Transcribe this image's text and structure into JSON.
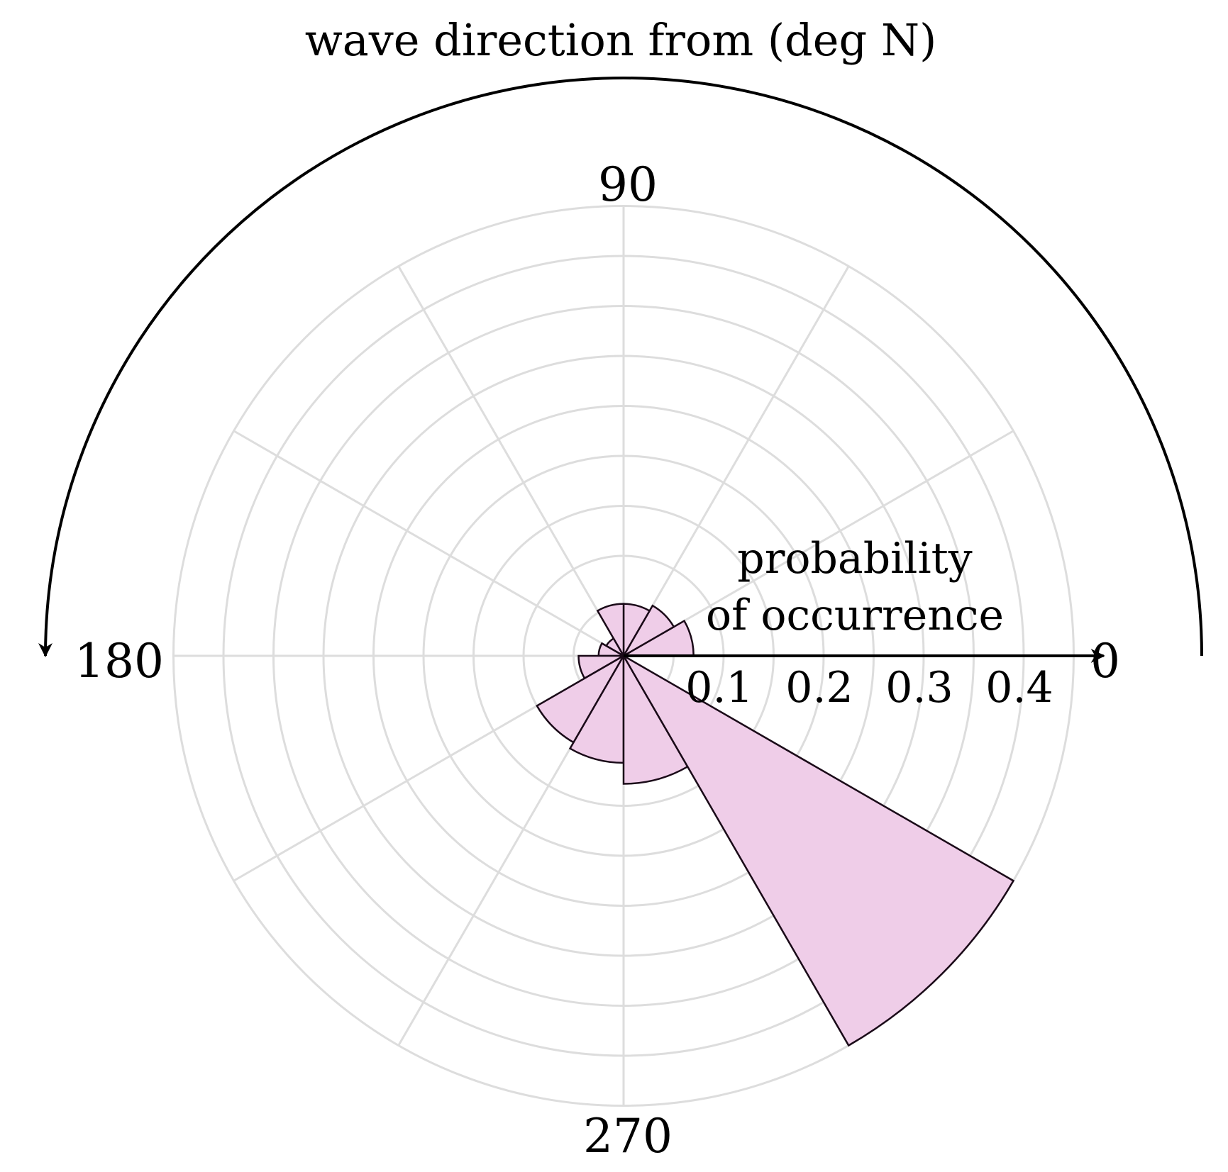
{
  "chart_data": {
    "type": "polar-bar",
    "title": "wave direction from (deg N)",
    "radial_axis_label": [
      "probability",
      "of occurrence"
    ],
    "angular_ticks": [
      {
        "angle": 0,
        "label": "0"
      },
      {
        "angle": 90,
        "label": "90"
      },
      {
        "angle": 180,
        "label": "180"
      },
      {
        "angle": 270,
        "label": "270"
      }
    ],
    "radial_ticks": [
      {
        "value": 0.1,
        "label": "0.1"
      },
      {
        "value": 0.2,
        "label": "0.2"
      },
      {
        "value": 0.3,
        "label": "0.3"
      },
      {
        "value": 0.4,
        "label": "0.4"
      }
    ],
    "radial_gridlines": [
      0.05,
      0.1,
      0.15,
      0.2,
      0.25,
      0.3,
      0.35,
      0.4,
      0.45
    ],
    "angular_gridlines_deg": [
      0,
      30,
      60,
      90,
      120,
      150,
      180,
      210,
      240,
      270,
      300,
      330
    ],
    "radial_max": 0.45,
    "angle_direction": "counterclockwise, 0 to the right",
    "sectors": [
      {
        "start": 0,
        "end": 30,
        "value": 0.07
      },
      {
        "start": 30,
        "end": 60,
        "value": 0.058
      },
      {
        "start": 60,
        "end": 90,
        "value": 0.052
      },
      {
        "start": 90,
        "end": 120,
        "value": 0.052
      },
      {
        "start": 120,
        "end": 150,
        "value": 0.02
      },
      {
        "start": 150,
        "end": 180,
        "value": 0.025
      },
      {
        "start": 180,
        "end": 210,
        "value": 0.045
      },
      {
        "start": 210,
        "end": 240,
        "value": 0.1
      },
      {
        "start": 240,
        "end": 270,
        "value": 0.107
      },
      {
        "start": 270,
        "end": 300,
        "value": 0.128
      },
      {
        "start": 300,
        "end": 330,
        "value": 0.45
      }
    ],
    "colors": {
      "fill": "#efcde8",
      "edge": "#1a0a18",
      "grid": "#dddddd",
      "axis": "#000000"
    }
  }
}
